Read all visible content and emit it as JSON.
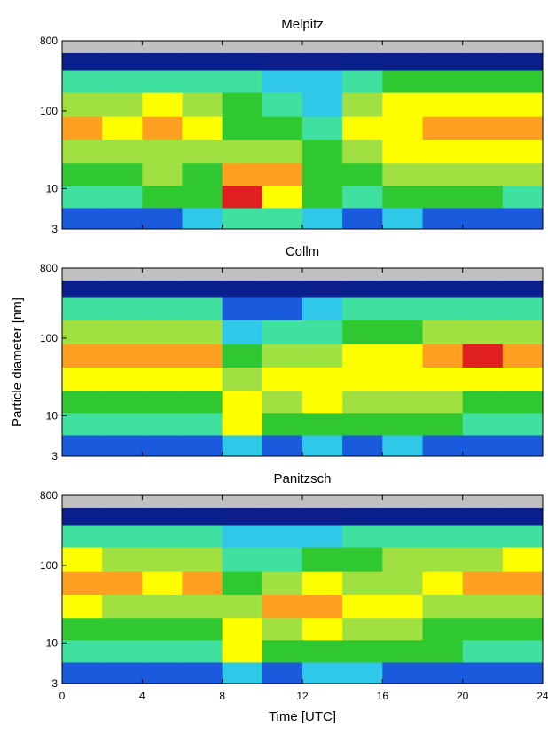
{
  "chart_data": [
    {
      "type": "contour",
      "title": "Melpitz",
      "log_y": true,
      "xlim": [
        0,
        24
      ],
      "xticks": [
        0,
        4,
        8,
        12,
        16,
        20,
        24
      ],
      "ylim": [
        3,
        800
      ],
      "yticks": [
        3,
        10,
        100,
        800
      ],
      "colors": [
        "#c0c0c0",
        "#0a1e8c",
        "#1a5adc",
        "#30c8e8",
        "#40e0a0",
        "#30c830",
        "#a0e040",
        "#ffff00",
        "#ffa020",
        "#e02020"
      ],
      "x": [
        1,
        3,
        5,
        7,
        9,
        11,
        13,
        15,
        17,
        19,
        21,
        23
      ],
      "y": [
        4,
        8,
        15,
        30,
        60,
        120,
        250,
        450,
        700
      ],
      "z": [
        [
          2,
          2,
          2,
          3,
          4,
          4,
          3,
          2,
          3,
          2,
          2,
          2
        ],
        [
          4,
          4,
          5,
          5,
          9,
          7,
          5,
          4,
          5,
          5,
          5,
          4
        ],
        [
          5,
          5,
          6,
          5,
          8,
          8,
          5,
          5,
          6,
          6,
          6,
          6
        ],
        [
          6,
          6,
          6,
          6,
          6,
          6,
          5,
          6,
          7,
          7,
          7,
          7
        ],
        [
          8,
          7,
          8,
          7,
          5,
          5,
          4,
          7,
          7,
          8,
          8,
          8
        ],
        [
          6,
          6,
          7,
          6,
          5,
          4,
          3,
          6,
          7,
          7,
          7,
          7
        ],
        [
          4,
          4,
          4,
          4,
          4,
          3,
          3,
          4,
          5,
          5,
          5,
          5
        ],
        [
          1,
          1,
          1,
          1,
          1,
          1,
          1,
          1,
          1,
          1,
          1,
          1
        ],
        [
          0,
          0,
          0,
          0,
          0,
          0,
          0,
          0,
          0,
          0,
          0,
          0
        ]
      ]
    },
    {
      "type": "contour",
      "title": "Collm",
      "log_y": true,
      "ylabel": "Particle diameter [nm]",
      "xlim": [
        0,
        24
      ],
      "xticks": [
        0,
        4,
        8,
        12,
        16,
        20,
        24
      ],
      "ylim": [
        3,
        800
      ],
      "yticks": [
        3,
        10,
        100,
        800
      ],
      "colors": [
        "#c0c0c0",
        "#0a1e8c",
        "#1a5adc",
        "#30c8e8",
        "#40e0a0",
        "#30c830",
        "#a0e040",
        "#ffff00",
        "#ffa020",
        "#e02020"
      ],
      "x": [
        1,
        3,
        5,
        7,
        9,
        11,
        13,
        15,
        17,
        19,
        21,
        23
      ],
      "y": [
        4,
        8,
        15,
        30,
        60,
        120,
        250,
        450,
        700
      ],
      "z": [
        [
          2,
          2,
          2,
          2,
          3,
          2,
          3,
          2,
          3,
          2,
          2,
          2
        ],
        [
          4,
          4,
          4,
          4,
          7,
          5,
          5,
          5,
          5,
          5,
          4,
          4
        ],
        [
          5,
          5,
          5,
          5,
          7,
          6,
          7,
          6,
          6,
          6,
          5,
          5
        ],
        [
          7,
          7,
          7,
          7,
          6,
          7,
          7,
          7,
          7,
          7,
          7,
          7
        ],
        [
          8,
          8,
          8,
          8,
          5,
          6,
          6,
          7,
          7,
          8,
          9,
          8
        ],
        [
          6,
          6,
          6,
          6,
          3,
          4,
          4,
          5,
          5,
          6,
          6,
          6
        ],
        [
          4,
          4,
          4,
          4,
          2,
          2,
          3,
          4,
          4,
          4,
          4,
          4
        ],
        [
          1,
          1,
          1,
          1,
          1,
          1,
          1,
          1,
          1,
          1,
          1,
          1
        ],
        [
          0,
          0,
          0,
          0,
          0,
          0,
          0,
          0,
          0,
          0,
          0,
          0
        ]
      ]
    },
    {
      "type": "contour",
      "title": "Panitzsch",
      "log_y": true,
      "xlabel": "Time [UTC]",
      "xlim": [
        0,
        24
      ],
      "xticks": [
        0,
        4,
        8,
        12,
        16,
        20,
        24
      ],
      "ylim": [
        3,
        800
      ],
      "yticks": [
        3,
        10,
        100,
        800
      ],
      "colors": [
        "#c0c0c0",
        "#0a1e8c",
        "#1a5adc",
        "#30c8e8",
        "#40e0a0",
        "#30c830",
        "#a0e040",
        "#ffff00",
        "#ffa020",
        "#e02020"
      ],
      "x": [
        1,
        3,
        5,
        7,
        9,
        11,
        13,
        15,
        17,
        19,
        21,
        23
      ],
      "y": [
        4,
        8,
        15,
        30,
        60,
        120,
        250,
        450,
        700
      ],
      "z": [
        [
          2,
          2,
          2,
          2,
          3,
          2,
          3,
          3,
          2,
          2,
          2,
          2
        ],
        [
          4,
          4,
          4,
          4,
          7,
          5,
          5,
          5,
          5,
          5,
          4,
          4
        ],
        [
          5,
          5,
          5,
          5,
          7,
          6,
          7,
          6,
          6,
          5,
          5,
          5
        ],
        [
          7,
          6,
          6,
          6,
          6,
          8,
          8,
          7,
          7,
          6,
          6,
          6
        ],
        [
          8,
          8,
          7,
          8,
          5,
          6,
          7,
          6,
          6,
          7,
          8,
          8
        ],
        [
          7,
          6,
          6,
          6,
          4,
          4,
          5,
          5,
          6,
          6,
          6,
          7
        ],
        [
          4,
          4,
          4,
          4,
          3,
          3,
          3,
          4,
          4,
          4,
          4,
          4
        ],
        [
          1,
          1,
          1,
          1,
          1,
          1,
          1,
          1,
          1,
          1,
          1,
          1
        ],
        [
          0,
          0,
          0,
          0,
          0,
          0,
          0,
          0,
          0,
          0,
          0,
          0
        ]
      ]
    }
  ]
}
